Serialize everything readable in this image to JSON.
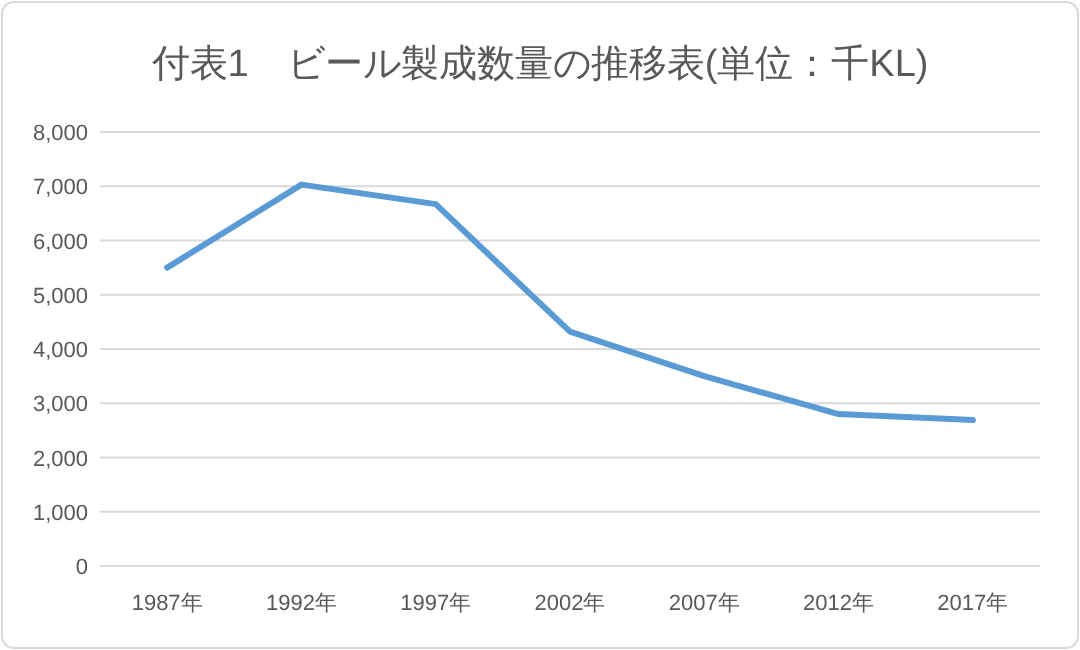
{
  "chart_data": {
    "type": "line",
    "title": "付表1　ビール製成数量の推移表(単位：千KL)",
    "categories": [
      "1987年",
      "1992年",
      "1997年",
      "2002年",
      "2007年",
      "2012年",
      "2017年"
    ],
    "series": [
      {
        "color": "#5b9bd5",
        "values": [
          5500,
          7030,
          6670,
          4320,
          3500,
          2800,
          2690
        ]
      }
    ],
    "ylim": [
      0,
      8000
    ],
    "yticks": [
      {
        "value": 0,
        "label": "0"
      },
      {
        "value": 1000,
        "label": "1,000"
      },
      {
        "value": 2000,
        "label": "2,000"
      },
      {
        "value": 3000,
        "label": "3,000"
      },
      {
        "value": 4000,
        "label": "4,000"
      },
      {
        "value": 5000,
        "label": "5,000"
      },
      {
        "value": 6000,
        "label": "6,000"
      },
      {
        "value": 7000,
        "label": "7,000"
      },
      {
        "value": 8000,
        "label": "8,000"
      }
    ],
    "grid": "y",
    "marker": "none",
    "line_style": "solid"
  }
}
